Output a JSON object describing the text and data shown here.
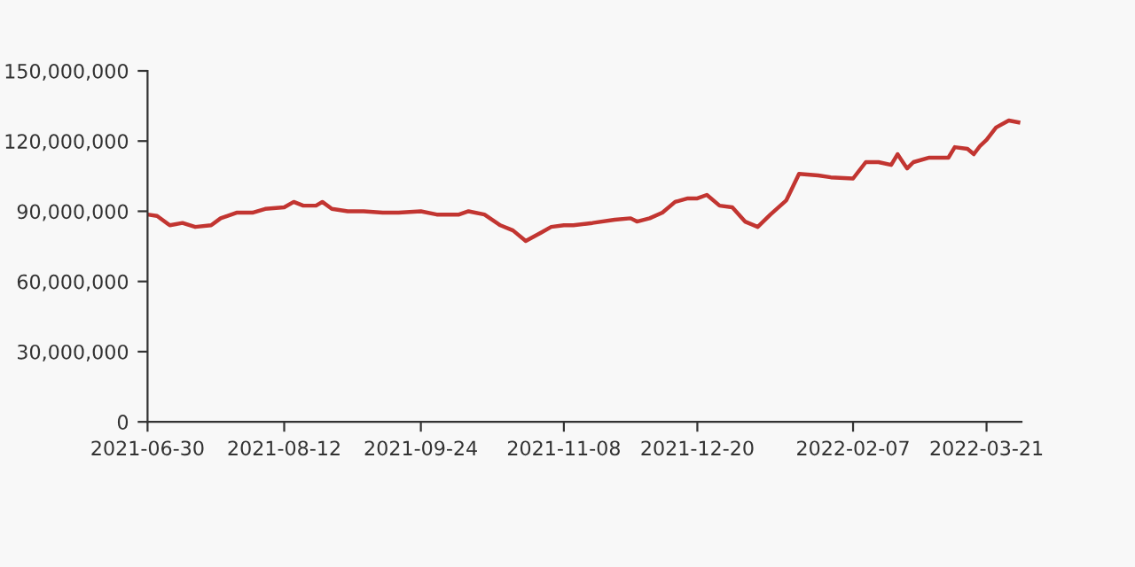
{
  "chart_data": {
    "type": "line",
    "x": [
      "2021-06-30",
      "2021-07-03",
      "2021-07-07",
      "2021-07-11",
      "2021-07-15",
      "2021-07-20",
      "2021-07-23",
      "2021-07-28",
      "2021-08-02",
      "2021-08-06",
      "2021-08-12",
      "2021-08-15",
      "2021-08-18",
      "2021-08-22",
      "2021-08-24",
      "2021-08-27",
      "2021-09-01",
      "2021-09-06",
      "2021-09-12",
      "2021-09-17",
      "2021-09-24",
      "2021-09-29",
      "2021-10-06",
      "2021-10-09",
      "2021-10-14",
      "2021-10-19",
      "2021-10-23",
      "2021-10-27",
      "2021-11-01",
      "2021-11-04",
      "2021-11-08",
      "2021-11-11",
      "2021-11-17",
      "2021-11-24",
      "2021-11-29",
      "2021-12-01",
      "2021-12-05",
      "2021-12-09",
      "2021-12-13",
      "2021-12-17",
      "2021-12-20",
      "2021-12-23",
      "2021-12-27",
      "2021-12-31",
      "2022-01-04",
      "2022-01-08",
      "2022-01-12",
      "2022-01-17",
      "2022-01-21",
      "2022-01-27",
      "2022-01-31",
      "2022-02-07",
      "2022-02-11",
      "2022-02-15",
      "2022-02-19",
      "2022-02-21",
      "2022-02-24",
      "2022-02-26",
      "2022-03-03",
      "2022-03-09",
      "2022-03-11",
      "2022-03-15",
      "2022-03-17",
      "2022-03-19",
      "2022-03-21",
      "2022-03-24",
      "2022-03-28",
      "2022-03-31"
    ],
    "series": [
      {
        "color": "#c23531",
        "values": [
          88600000,
          88000000,
          84000000,
          85000000,
          83300000,
          84000000,
          87000000,
          89400000,
          89400000,
          91000000,
          91700000,
          94000000,
          92400000,
          92400000,
          94000000,
          91000000,
          90000000,
          90000000,
          89400000,
          89400000,
          90000000,
          88600000,
          88600000,
          90000000,
          88600000,
          84000000,
          81800000,
          77300000,
          81000000,
          83300000,
          84000000,
          84000000,
          85000000,
          86400000,
          87000000,
          85600000,
          87000000,
          89400000,
          94000000,
          95500000,
          95500000,
          97000000,
          92400000,
          91700000,
          85600000,
          83300000,
          88600000,
          94700000,
          106000000,
          105300000,
          104500000,
          104000000,
          111000000,
          111000000,
          109800000,
          114400000,
          108300000,
          111000000,
          112900000,
          112900000,
          117400000,
          116700000,
          114400000,
          118000000,
          120500000,
          125800000,
          128800000,
          128000000
        ]
      }
    ],
    "xlim": [
      "2021-06-30",
      "2022-04-01"
    ],
    "xticks": [
      "2021-06-30",
      "2021-08-12",
      "2021-09-24",
      "2021-11-08",
      "2021-12-20",
      "2022-02-07",
      "2022-03-21"
    ],
    "ylim": [
      0,
      150000000
    ],
    "yticks": [
      0,
      {
        "value": 30000000,
        "label": "30,000,000"
      },
      {
        "value": 60000000,
        "label": "60,000,000"
      },
      {
        "value": 90000000,
        "label": "90,000,000"
      },
      {
        "value": 120000000,
        "label": "120,000,000"
      },
      {
        "value": 150000000,
        "label": "150,000,000"
      }
    ]
  }
}
